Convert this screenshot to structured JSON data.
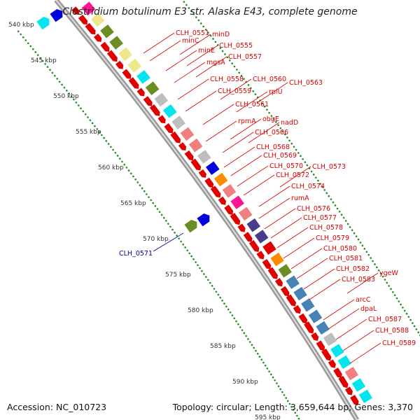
{
  "title": "Clostridium botulinum E3 str. Alaska E43, complete genome",
  "footer": {
    "accession_label": "Accession:",
    "accession": "NC_010723",
    "topology_label": "Topology:",
    "topology": "circular;",
    "length_label": "Length:",
    "length": "3,659,644 bp;",
    "genes_label": "Genes:",
    "genes": "3,370"
  },
  "scale_labels": [
    "540 kbp",
    "545 kbp",
    "550 kbp",
    "555 kbp",
    "560 kbp",
    "565 kbp",
    "570 kbp",
    "575 kbp",
    "580 kbp",
    "585 kbp",
    "590 kbp",
    "595 kbp"
  ],
  "gene_labels": [
    "CLH_0551",
    "minD",
    "minC",
    "minE",
    "CLH_0555",
    "mgsA",
    "CLH_0557",
    "CLH_0558",
    "CLH_0560",
    "CLH_0563",
    "CLH_0559",
    "rplU",
    "CLH_0561",
    "obgE",
    "rpmA",
    "nadD",
    "CLH_0566",
    "CLH_0568",
    "CLH_0569",
    "CLH_0570",
    "CLH_0573",
    "CLH_0572",
    "CLH_0574",
    "rumA",
    "CLH_0576",
    "CLH_0577",
    "CLH_0578",
    "CLH_0579",
    "CLH_0580",
    "CLH_0581",
    "CLH_0582",
    "ygeW",
    "CLH_0583",
    "arcC",
    "dpaL",
    "CLH_0587",
    "CLH_0588",
    "CLH_0589"
  ],
  "reverse_gene_label": "CLH_0571",
  "colors": {
    "gene_red": "#e00000",
    "cog_yellow": "#f0e68c",
    "cog_olive": "#6b8e23",
    "cog_cyan": "#00e5ee",
    "cog_blue": "#0000dd",
    "cog_orange": "#ff8c00",
    "cog_pink": "#f08080",
    "cog_steel": "#4682b4",
    "cog_navy": "#483d8b",
    "cog_magenta": "#ff1493",
    "cog_grey": "#bebebe",
    "backbone": "#999999",
    "gc_dots": "#228b22",
    "label_red": "#d90000",
    "label_blue": "#000099"
  }
}
